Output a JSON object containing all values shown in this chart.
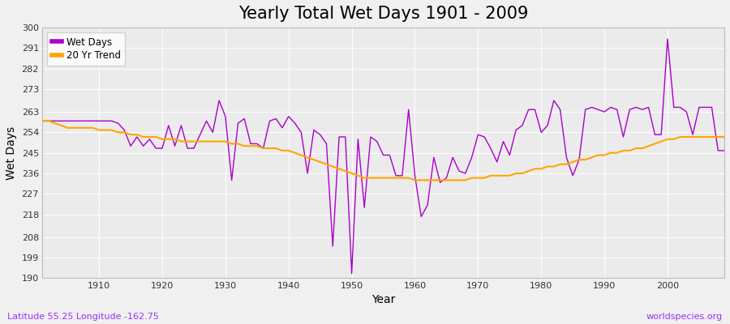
{
  "title": "Yearly Total Wet Days 1901 - 2009",
  "xlabel": "Year",
  "ylabel": "Wet Days",
  "subtitle": "Latitude 55.25 Longitude -162.75",
  "watermark": "worldspecies.org",
  "bg_color": "#f0f0f0",
  "plot_bg_color": "#ebebeb",
  "wet_days_color": "#aa00cc",
  "trend_color": "#ffa500",
  "ylim": [
    190,
    300
  ],
  "yticks": [
    190,
    199,
    208,
    218,
    227,
    236,
    245,
    254,
    263,
    273,
    282,
    291,
    300
  ],
  "xlim": [
    1901,
    2009
  ],
  "xticks": [
    1910,
    1920,
    1930,
    1940,
    1950,
    1960,
    1970,
    1980,
    1990,
    2000
  ],
  "years": [
    1901,
    1902,
    1903,
    1904,
    1905,
    1906,
    1907,
    1908,
    1909,
    1910,
    1911,
    1912,
    1913,
    1914,
    1915,
    1916,
    1917,
    1918,
    1919,
    1920,
    1921,
    1922,
    1923,
    1924,
    1925,
    1926,
    1927,
    1928,
    1929,
    1930,
    1931,
    1932,
    1933,
    1934,
    1935,
    1936,
    1937,
    1938,
    1939,
    1940,
    1941,
    1942,
    1943,
    1944,
    1945,
    1946,
    1947,
    1948,
    1949,
    1950,
    1951,
    1952,
    1953,
    1954,
    1955,
    1956,
    1957,
    1958,
    1959,
    1960,
    1961,
    1962,
    1963,
    1964,
    1965,
    1966,
    1967,
    1968,
    1969,
    1970,
    1971,
    1972,
    1973,
    1974,
    1975,
    1976,
    1977,
    1978,
    1979,
    1980,
    1981,
    1982,
    1983,
    1984,
    1985,
    1986,
    1987,
    1988,
    1989,
    1990,
    1991,
    1992,
    1993,
    1994,
    1995,
    1996,
    1997,
    1998,
    1999,
    2000,
    2001,
    2002,
    2003,
    2004,
    2005,
    2006,
    2007,
    2008,
    2009
  ],
  "wet_days": [
    259,
    259,
    259,
    259,
    259,
    259,
    259,
    259,
    259,
    259,
    259,
    259,
    258,
    255,
    248,
    252,
    248,
    251,
    247,
    247,
    257,
    248,
    257,
    247,
    247,
    253,
    259,
    254,
    268,
    261,
    233,
    258,
    260,
    249,
    249,
    247,
    259,
    260,
    256,
    261,
    258,
    254,
    236,
    255,
    253,
    249,
    204,
    252,
    252,
    192,
    251,
    221,
    252,
    250,
    244,
    244,
    235,
    235,
    264,
    235,
    217,
    222,
    243,
    232,
    234,
    243,
    237,
    236,
    243,
    253,
    252,
    247,
    241,
    250,
    244,
    255,
    257,
    264,
    264,
    254,
    257,
    268,
    264,
    243,
    235,
    242,
    264,
    265,
    264,
    263,
    265,
    264,
    252,
    264,
    265,
    264,
    265,
    253,
    253,
    295,
    265,
    265,
    263,
    253,
    265,
    265,
    265,
    246,
    246
  ],
  "trend": [
    259,
    259,
    258,
    257,
    256,
    256,
    256,
    256,
    256,
    255,
    255,
    255,
    254,
    254,
    253,
    253,
    252,
    252,
    252,
    251,
    251,
    251,
    250,
    250,
    250,
    250,
    250,
    250,
    250,
    250,
    249,
    249,
    248,
    248,
    248,
    247,
    247,
    247,
    246,
    246,
    245,
    244,
    243,
    242,
    241,
    240,
    239,
    238,
    237,
    236,
    235,
    234,
    234,
    234,
    234,
    234,
    234,
    234,
    234,
    233,
    233,
    233,
    233,
    233,
    233,
    233,
    233,
    233,
    234,
    234,
    234,
    235,
    235,
    235,
    235,
    236,
    236,
    237,
    238,
    238,
    239,
    239,
    240,
    240,
    241,
    242,
    242,
    243,
    244,
    244,
    245,
    245,
    246,
    246,
    247,
    247,
    248,
    249,
    250,
    251,
    251,
    252,
    252,
    252,
    252,
    252,
    252,
    252,
    252
  ]
}
